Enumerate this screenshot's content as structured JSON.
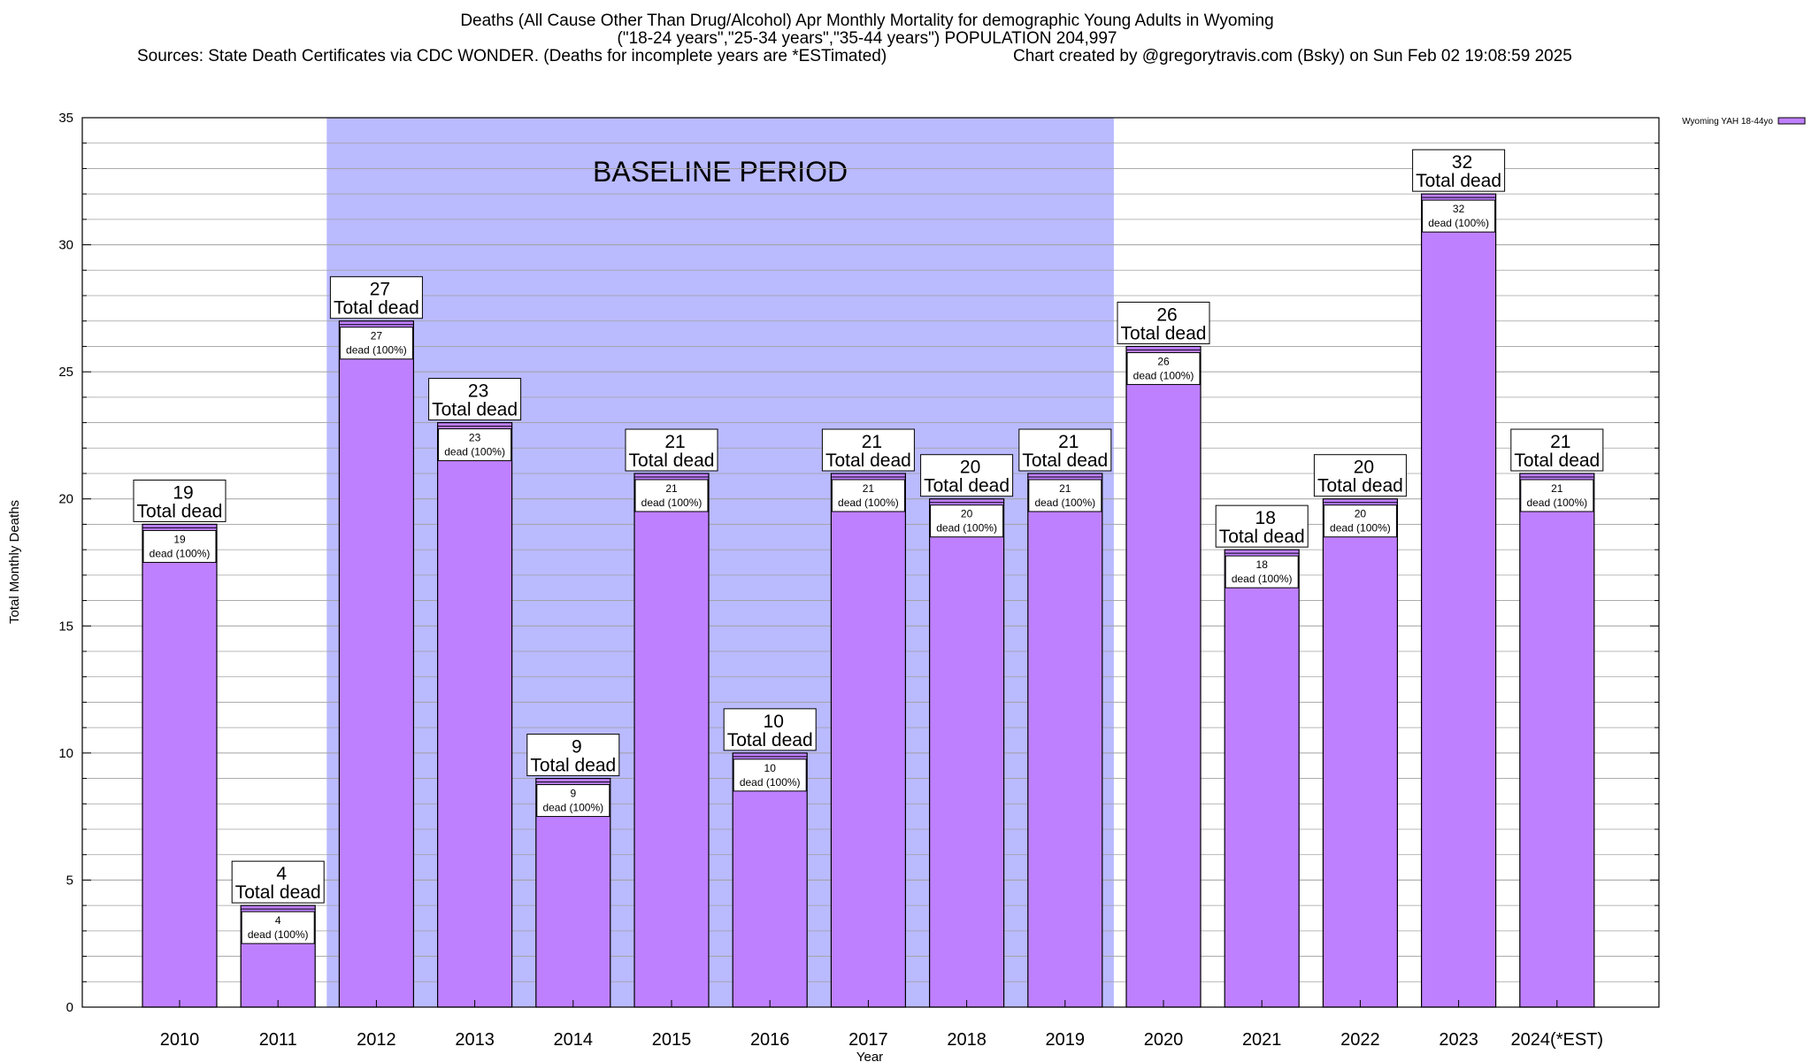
{
  "header": {
    "title_line1": "Deaths (All Cause Other Than Drug/Alcohol) Apr Monthly Mortality for demographic Young Adults in Wyoming",
    "title_line2": "(\"18-24 years\",\"25-34 years\",\"35-44 years\") POPULATION 204,997",
    "sources": "Sources: State Death Certificates via CDC WONDER. (Deaths for incomplete years are *ESTimated)",
    "credit": "Chart created by @gregorytravis.com (Bsky) on Sun Feb 02 19:08:59 2025"
  },
  "colors": {
    "bar_fill": "#bf80ff",
    "bar_stroke": "#000000",
    "baseline_fill": "#babaff",
    "grid": "#a0a0a0",
    "background": "#ffffff"
  },
  "chart_data": {
    "type": "bar",
    "title": "Deaths (All Cause Other Than Drug/Alcohol) Apr Monthly Mortality for demographic Young Adults in Wyoming",
    "xlabel": "Year",
    "ylabel": "Total Monthly Deaths",
    "ylim": [
      0,
      35
    ],
    "y_ticks": [
      0,
      5,
      10,
      15,
      20,
      25,
      30,
      35
    ],
    "y_minor_step": 1,
    "grid": true,
    "legend": {
      "position": "top-right",
      "entries": [
        "Wyoming YAH 18-44yo"
      ]
    },
    "categories": [
      "2010",
      "2011",
      "2012",
      "2013",
      "2014",
      "2015",
      "2016",
      "2017",
      "2018",
      "2019",
      "2020",
      "2021",
      "2022",
      "2023",
      "2024(*EST)"
    ],
    "series": [
      {
        "name": "Wyoming YAH 18-44yo",
        "values": [
          19,
          4,
          27,
          23,
          9,
          21,
          10,
          21,
          20,
          21,
          26,
          18,
          20,
          32,
          21
        ]
      }
    ],
    "top_labels": [
      {
        "value": "19",
        "text": "Total dead"
      },
      {
        "value": "4",
        "text": "Total dead"
      },
      {
        "value": "27",
        "text": "Total dead"
      },
      {
        "value": "23",
        "text": "Total dead"
      },
      {
        "value": "9",
        "text": "Total dead"
      },
      {
        "value": "21",
        "text": "Total dead"
      },
      {
        "value": "10",
        "text": "Total dead"
      },
      {
        "value": "21",
        "text": "Total dead"
      },
      {
        "value": "20",
        "text": "Total dead"
      },
      {
        "value": "21",
        "text": "Total dead"
      },
      {
        "value": "26",
        "text": "Total dead"
      },
      {
        "value": "18",
        "text": "Total dead"
      },
      {
        "value": "20",
        "text": "Total dead"
      },
      {
        "value": "32",
        "text": "Total dead"
      },
      {
        "value": "21",
        "text": "Total dead"
      }
    ],
    "inner_labels": [
      {
        "value": "19",
        "text": "dead (100%)"
      },
      {
        "value": "4",
        "text": "dead (100%)"
      },
      {
        "value": "27",
        "text": "dead (100%)"
      },
      {
        "value": "23",
        "text": "dead (100%)"
      },
      {
        "value": "9",
        "text": "dead (100%)"
      },
      {
        "value": "21",
        "text": "dead (100%)"
      },
      {
        "value": "10",
        "text": "dead (100%)"
      },
      {
        "value": "21",
        "text": "dead (100%)"
      },
      {
        "value": "20",
        "text": "dead (100%)"
      },
      {
        "value": "21",
        "text": "dead (100%)"
      },
      {
        "value": "26",
        "text": "dead (100%)"
      },
      {
        "value": "18",
        "text": "dead (100%)"
      },
      {
        "value": "20",
        "text": "dead (100%)"
      },
      {
        "value": "32",
        "text": "dead (100%)"
      },
      {
        "value": "21",
        "text": "dead (100%)"
      }
    ],
    "annotations": [
      {
        "text": "BASELINE PERIOD",
        "from_category": "2012",
        "to_category": "2019"
      }
    ]
  }
}
